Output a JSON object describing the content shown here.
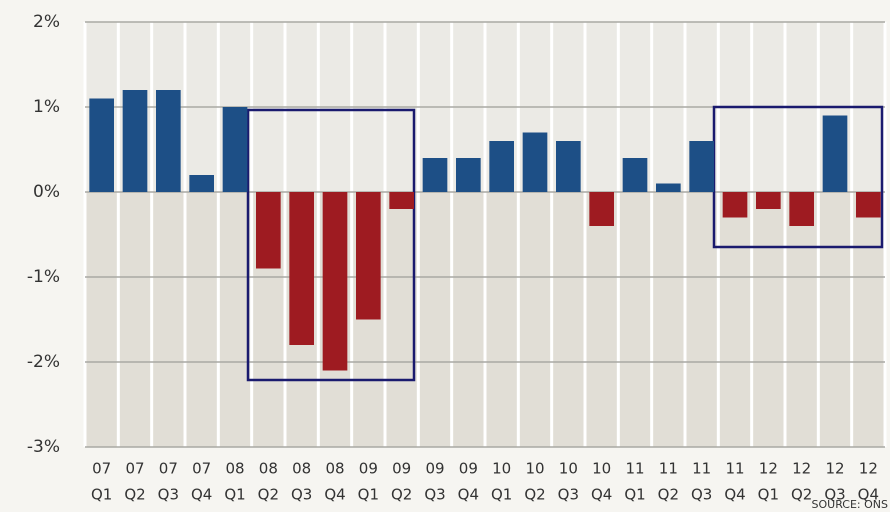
{
  "chart_data": {
    "type": "bar",
    "categories": [
      {
        "year": "07",
        "quarter": "Q1"
      },
      {
        "year": "07",
        "quarter": "Q2"
      },
      {
        "year": "07",
        "quarter": "Q3"
      },
      {
        "year": "07",
        "quarter": "Q4"
      },
      {
        "year": "08",
        "quarter": "Q1"
      },
      {
        "year": "08",
        "quarter": "Q2"
      },
      {
        "year": "08",
        "quarter": "Q3"
      },
      {
        "year": "08",
        "quarter": "Q4"
      },
      {
        "year": "09",
        "quarter": "Q1"
      },
      {
        "year": "09",
        "quarter": "Q2"
      },
      {
        "year": "09",
        "quarter": "Q3"
      },
      {
        "year": "09",
        "quarter": "Q4"
      },
      {
        "year": "10",
        "quarter": "Q1"
      },
      {
        "year": "10",
        "quarter": "Q2"
      },
      {
        "year": "10",
        "quarter": "Q3"
      },
      {
        "year": "10",
        "quarter": "Q4"
      },
      {
        "year": "11",
        "quarter": "Q1"
      },
      {
        "year": "11",
        "quarter": "Q2"
      },
      {
        "year": "11",
        "quarter": "Q3"
      },
      {
        "year": "11",
        "quarter": "Q4"
      },
      {
        "year": "12",
        "quarter": "Q1"
      },
      {
        "year": "12",
        "quarter": "Q2"
      },
      {
        "year": "12",
        "quarter": "Q3"
      },
      {
        "year": "12",
        "quarter": "Q4"
      }
    ],
    "values": [
      1.1,
      1.2,
      1.2,
      0.2,
      1.0,
      -0.9,
      -1.8,
      -2.1,
      -1.5,
      -0.2,
      0.4,
      0.4,
      0.6,
      0.7,
      0.6,
      -0.4,
      0.4,
      0.1,
      0.6,
      -0.3,
      -0.2,
      -0.4,
      0.9,
      -0.3
    ],
    "colors": {
      "positive": "#1d4f86",
      "negative": "#9e1b21"
    },
    "ylim": [
      -3,
      2
    ],
    "yticks": [
      {
        "value": 2,
        "label": "2%"
      },
      {
        "value": 1,
        "label": "1%"
      },
      {
        "value": 0,
        "label": "0%"
      },
      {
        "value": -1,
        "label": "-1%"
      },
      {
        "value": -2,
        "label": "-2%"
      },
      {
        "value": -3,
        "label": "-3%"
      }
    ],
    "grid": true,
    "source": "SOURCE: ONS"
  }
}
